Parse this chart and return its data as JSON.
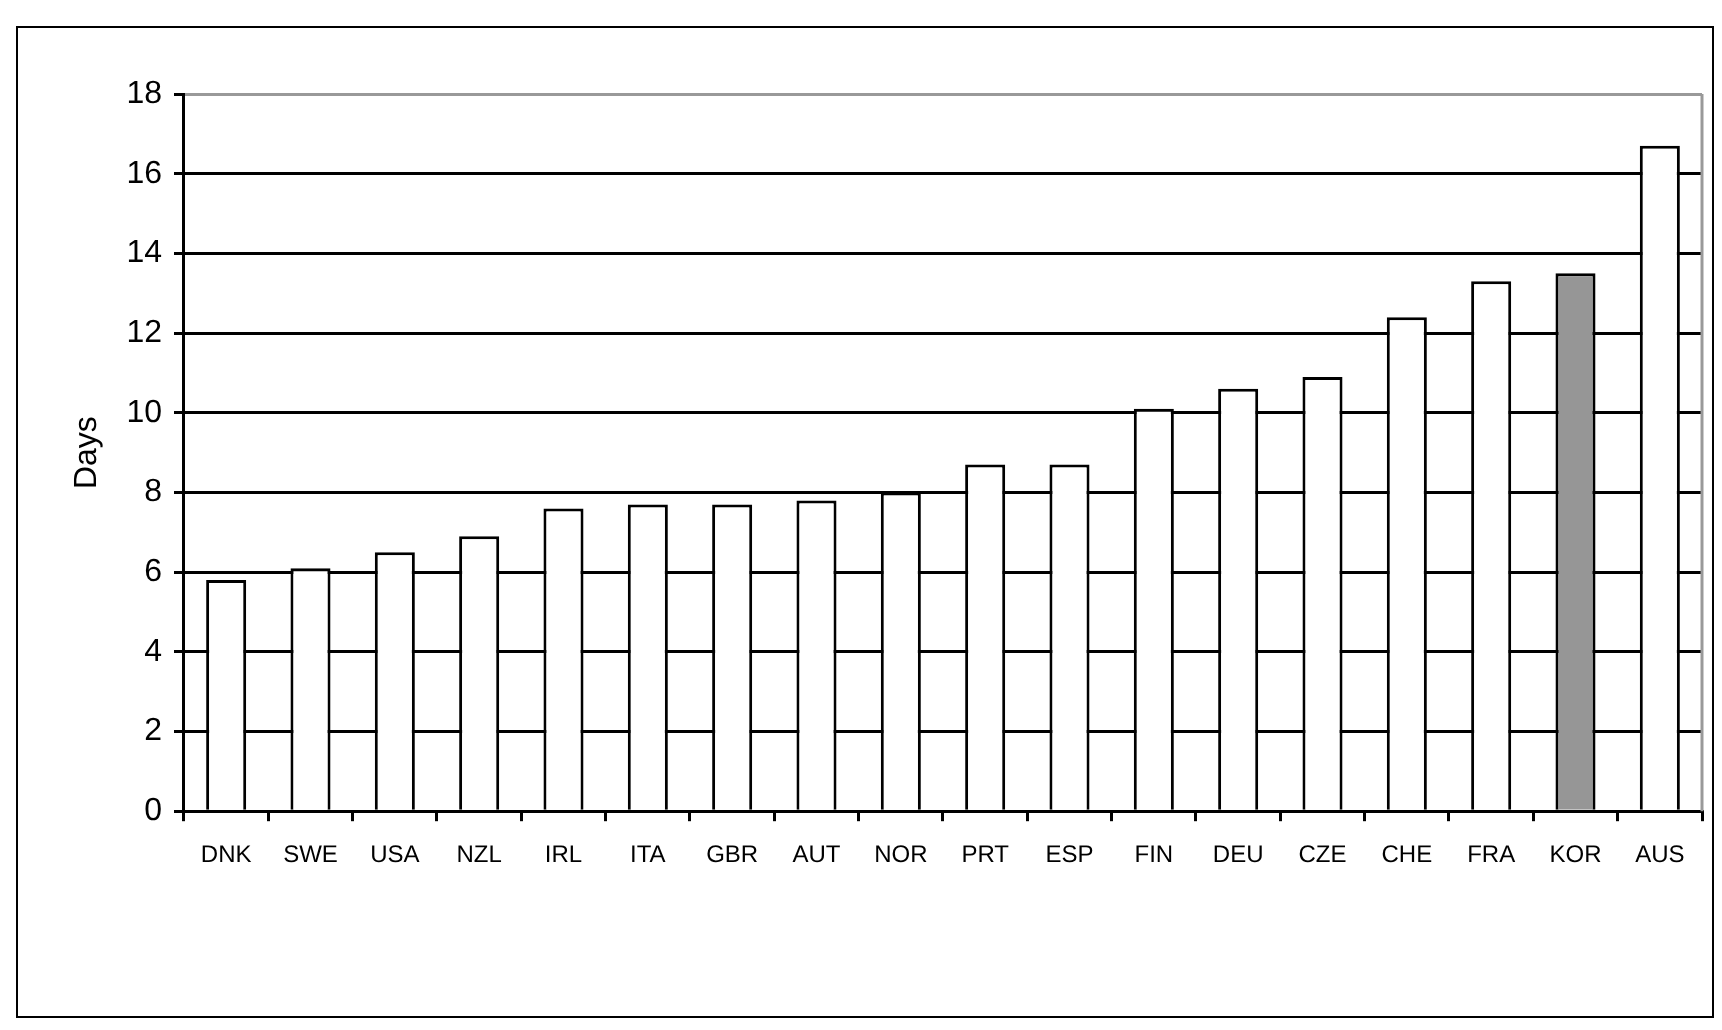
{
  "chart_data": {
    "type": "bar",
    "ylabel": "Days",
    "categories": [
      "DNK",
      "SWE",
      "USA",
      "NZL",
      "IRL",
      "ITA",
      "GBR",
      "AUT",
      "NOR",
      "PRT",
      "ESP",
      "FIN",
      "DEU",
      "CZE",
      "CHE",
      "FRA",
      "KOR",
      "AUS"
    ],
    "values": [
      5.8,
      6.1,
      6.5,
      6.9,
      7.6,
      7.7,
      7.7,
      7.8,
      8.0,
      8.7,
      8.7,
      10.1,
      10.6,
      10.9,
      12.4,
      13.3,
      13.5,
      16.7
    ],
    "colors": [
      "#ffffff",
      "#ffffff",
      "#ffffff",
      "#ffffff",
      "#ffffff",
      "#ffffff",
      "#ffffff",
      "#ffffff",
      "#ffffff",
      "#ffffff",
      "#ffffff",
      "#ffffff",
      "#ffffff",
      "#ffffff",
      "#ffffff",
      "#ffffff",
      "#969696",
      "#ffffff"
    ],
    "ylim": [
      0,
      18
    ],
    "yticks": [
      0,
      2,
      4,
      6,
      8,
      10,
      12,
      14,
      16,
      18
    ],
    "grid": "y",
    "legend": false
  }
}
